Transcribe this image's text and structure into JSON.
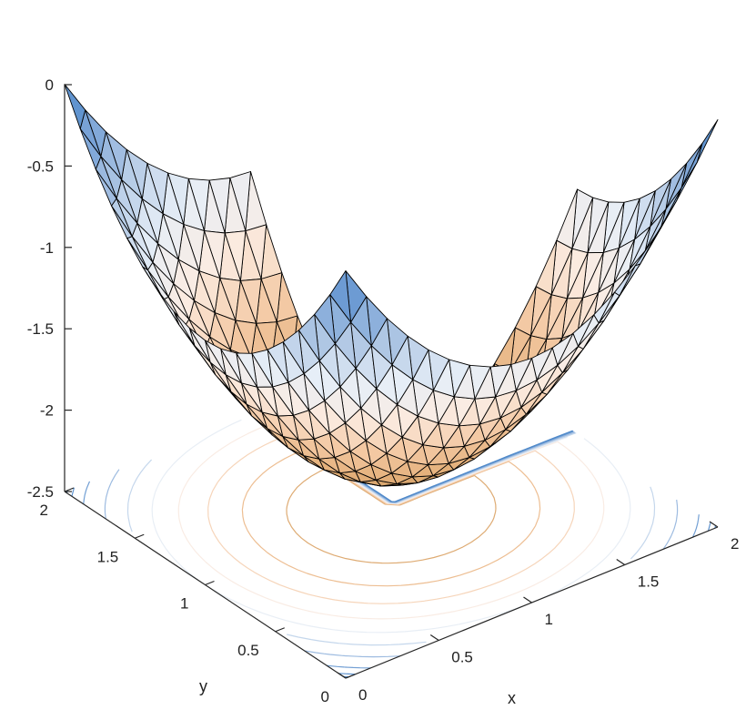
{
  "chart_data": {
    "type": "surface-3d-with-contour",
    "description_of_function": "z = -(x(2-x)) - (y(2-y)) style bowl over an L-shaped (V-shaped) domain",
    "x": {
      "label": "x",
      "ticks": [
        0,
        0.5,
        1,
        1.5,
        2
      ],
      "tick_labels": [
        "0",
        "0.5",
        "1",
        "1.5",
        "2"
      ],
      "lim": [
        0,
        2
      ]
    },
    "y": {
      "label": "y",
      "ticks": [
        0,
        0.5,
        1,
        1.5,
        2
      ],
      "tick_labels": [
        "0",
        "0.5",
        "1",
        "1.5",
        "2"
      ],
      "lim": [
        0,
        2
      ]
    },
    "z": {
      "label": "",
      "ticks": [
        0,
        -0.5,
        -1,
        -1.5,
        -2,
        -2.5
      ],
      "tick_labels": [
        "0",
        "-0.5",
        "-1",
        "-1.5",
        "-2",
        "-2.5"
      ],
      "lim": [
        -2.5,
        0
      ]
    },
    "z_min": -2.25,
    "z_max": 0,
    "contour_levels": [
      -2.0,
      -1.75,
      -1.5,
      -1.25,
      -1.0,
      -0.75,
      -0.5,
      -0.25,
      -0.1,
      -0.03
    ],
    "colormap": [
      "#4a86c8",
      "#7ea6d8",
      "#b5cbe6",
      "#e6eef7",
      "#fbece2",
      "#f4caa6",
      "#e4b07a",
      "#c9985c"
    ]
  }
}
